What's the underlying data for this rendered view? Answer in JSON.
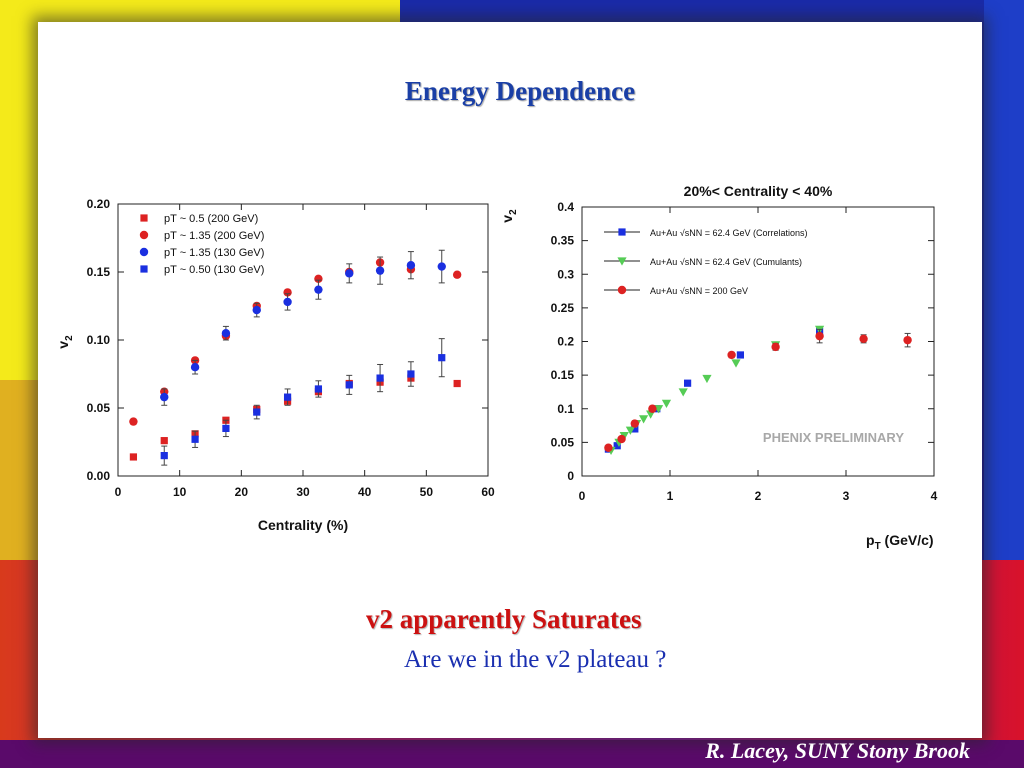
{
  "slide": {
    "title": "Energy Dependence",
    "headline": "v2 apparently Saturates",
    "question": "Are we in the v2 plateau ?",
    "author": "R. Lacey, SUNY  Stony Brook"
  },
  "colors": {
    "red": "#dd2222",
    "blue": "#1a2fe0",
    "green": "#55cc55",
    "title_blue": "#1a3fa6"
  },
  "chart_data": [
    {
      "type": "scatter",
      "title": "",
      "xlabel": "Centrality (%)",
      "ylabel": "v2",
      "xlim": [
        0,
        60
      ],
      "ylim": [
        0,
        0.2
      ],
      "xticks": [
        "0",
        "10",
        "20",
        "30",
        "40",
        "50",
        "60"
      ],
      "yticks": [
        "0.00",
        "0.05",
        "0.10",
        "0.15",
        "0.20"
      ],
      "legend_position": "top-left",
      "series": [
        {
          "name": "pT ~ 0.5 (200 GeV)",
          "marker": "square",
          "color": "#dd2222",
          "x": [
            2.5,
            7.5,
            12.5,
            17.5,
            22.5,
            27.5,
            32.5,
            37.5,
            42.5,
            47.5,
            55
          ],
          "y": [
            0.014,
            0.026,
            0.031,
            0.041,
            0.049,
            0.055,
            0.062,
            0.068,
            0.069,
            0.072,
            0.068
          ]
        },
        {
          "name": "pT ~ 1.35 (200 GeV)",
          "marker": "circle",
          "color": "#dd2222",
          "x": [
            2.5,
            7.5,
            12.5,
            17.5,
            22.5,
            27.5,
            32.5,
            37.5,
            42.5,
            47.5,
            55
          ],
          "y": [
            0.04,
            0.062,
            0.085,
            0.103,
            0.125,
            0.135,
            0.145,
            0.15,
            0.157,
            0.152,
            0.148
          ]
        },
        {
          "name": "pT  ~ 1.35 (130 GeV)",
          "marker": "circle",
          "color": "#1a2fe0",
          "x": [
            7.5,
            12.5,
            17.5,
            22.5,
            27.5,
            32.5,
            37.5,
            42.5,
            47.5,
            52.5
          ],
          "y": [
            0.058,
            0.08,
            0.105,
            0.122,
            0.128,
            0.137,
            0.149,
            0.151,
            0.155,
            0.154
          ],
          "err": [
            0.006,
            0.005,
            0.005,
            0.005,
            0.006,
            0.007,
            0.007,
            0.01,
            0.01,
            0.012
          ]
        },
        {
          "name": "pT  ~ 0.50 (130 GeV)",
          "marker": "square",
          "color": "#1a2fe0",
          "x": [
            7.5,
            12.5,
            17.5,
            22.5,
            27.5,
            32.5,
            37.5,
            42.5,
            47.5,
            52.5
          ],
          "y": [
            0.015,
            0.027,
            0.035,
            0.047,
            0.058,
            0.064,
            0.067,
            0.072,
            0.075,
            0.087
          ],
          "err": [
            0.007,
            0.006,
            0.006,
            0.005,
            0.006,
            0.006,
            0.007,
            0.01,
            0.009,
            0.014
          ]
        }
      ]
    },
    {
      "type": "scatter",
      "title": "20%< Centrality < 40%",
      "xlabel": "pT (GeV/c)",
      "ylabel": "v2",
      "xlim": [
        0,
        4
      ],
      "ylim": [
        0,
        0.4
      ],
      "xticks": [
        "0",
        "1",
        "2",
        "3",
        "4"
      ],
      "yticks": [
        "0",
        "0.05",
        "0.1",
        "0.15",
        "0.2",
        "0.25",
        "0.3",
        "0.35",
        "0.4"
      ],
      "legend_position": "top-left",
      "annotation": "PHENIX PRELIMINARY",
      "series": [
        {
          "name": "Au+Au √sNN = 62.4 GeV (Correlations)",
          "marker": "square",
          "color": "#1a2fe0",
          "x": [
            0.3,
            0.4,
            0.6,
            0.85,
            1.2,
            1.8,
            2.7
          ],
          "y": [
            0.04,
            0.045,
            0.07,
            0.1,
            0.138,
            0.18,
            0.215
          ]
        },
        {
          "name": "Au+Au √sNN = 62.4 GeV (Cumulants)",
          "marker": "triangle-down",
          "color": "#55cc55",
          "x": [
            0.33,
            0.42,
            0.48,
            0.55,
            0.62,
            0.7,
            0.78,
            0.87,
            0.96,
            1.15,
            1.42,
            1.75,
            2.2,
            2.7
          ],
          "y": [
            0.038,
            0.05,
            0.06,
            0.068,
            0.078,
            0.085,
            0.092,
            0.1,
            0.108,
            0.125,
            0.145,
            0.168,
            0.195,
            0.218
          ]
        },
        {
          "name": "Au+Au √sNN = 200 GeV",
          "marker": "circle",
          "color": "#dd2222",
          "x": [
            0.3,
            0.45,
            0.6,
            0.8,
            1.7,
            2.2,
            2.7,
            3.2,
            3.7
          ],
          "y": [
            0.042,
            0.055,
            0.078,
            0.1,
            0.18,
            0.192,
            0.208,
            0.204,
            0.202
          ],
          "err": [
            0.003,
            0.003,
            0.003,
            0.004,
            0.004,
            0.005,
            0.01,
            0.006,
            0.01
          ]
        }
      ]
    }
  ]
}
